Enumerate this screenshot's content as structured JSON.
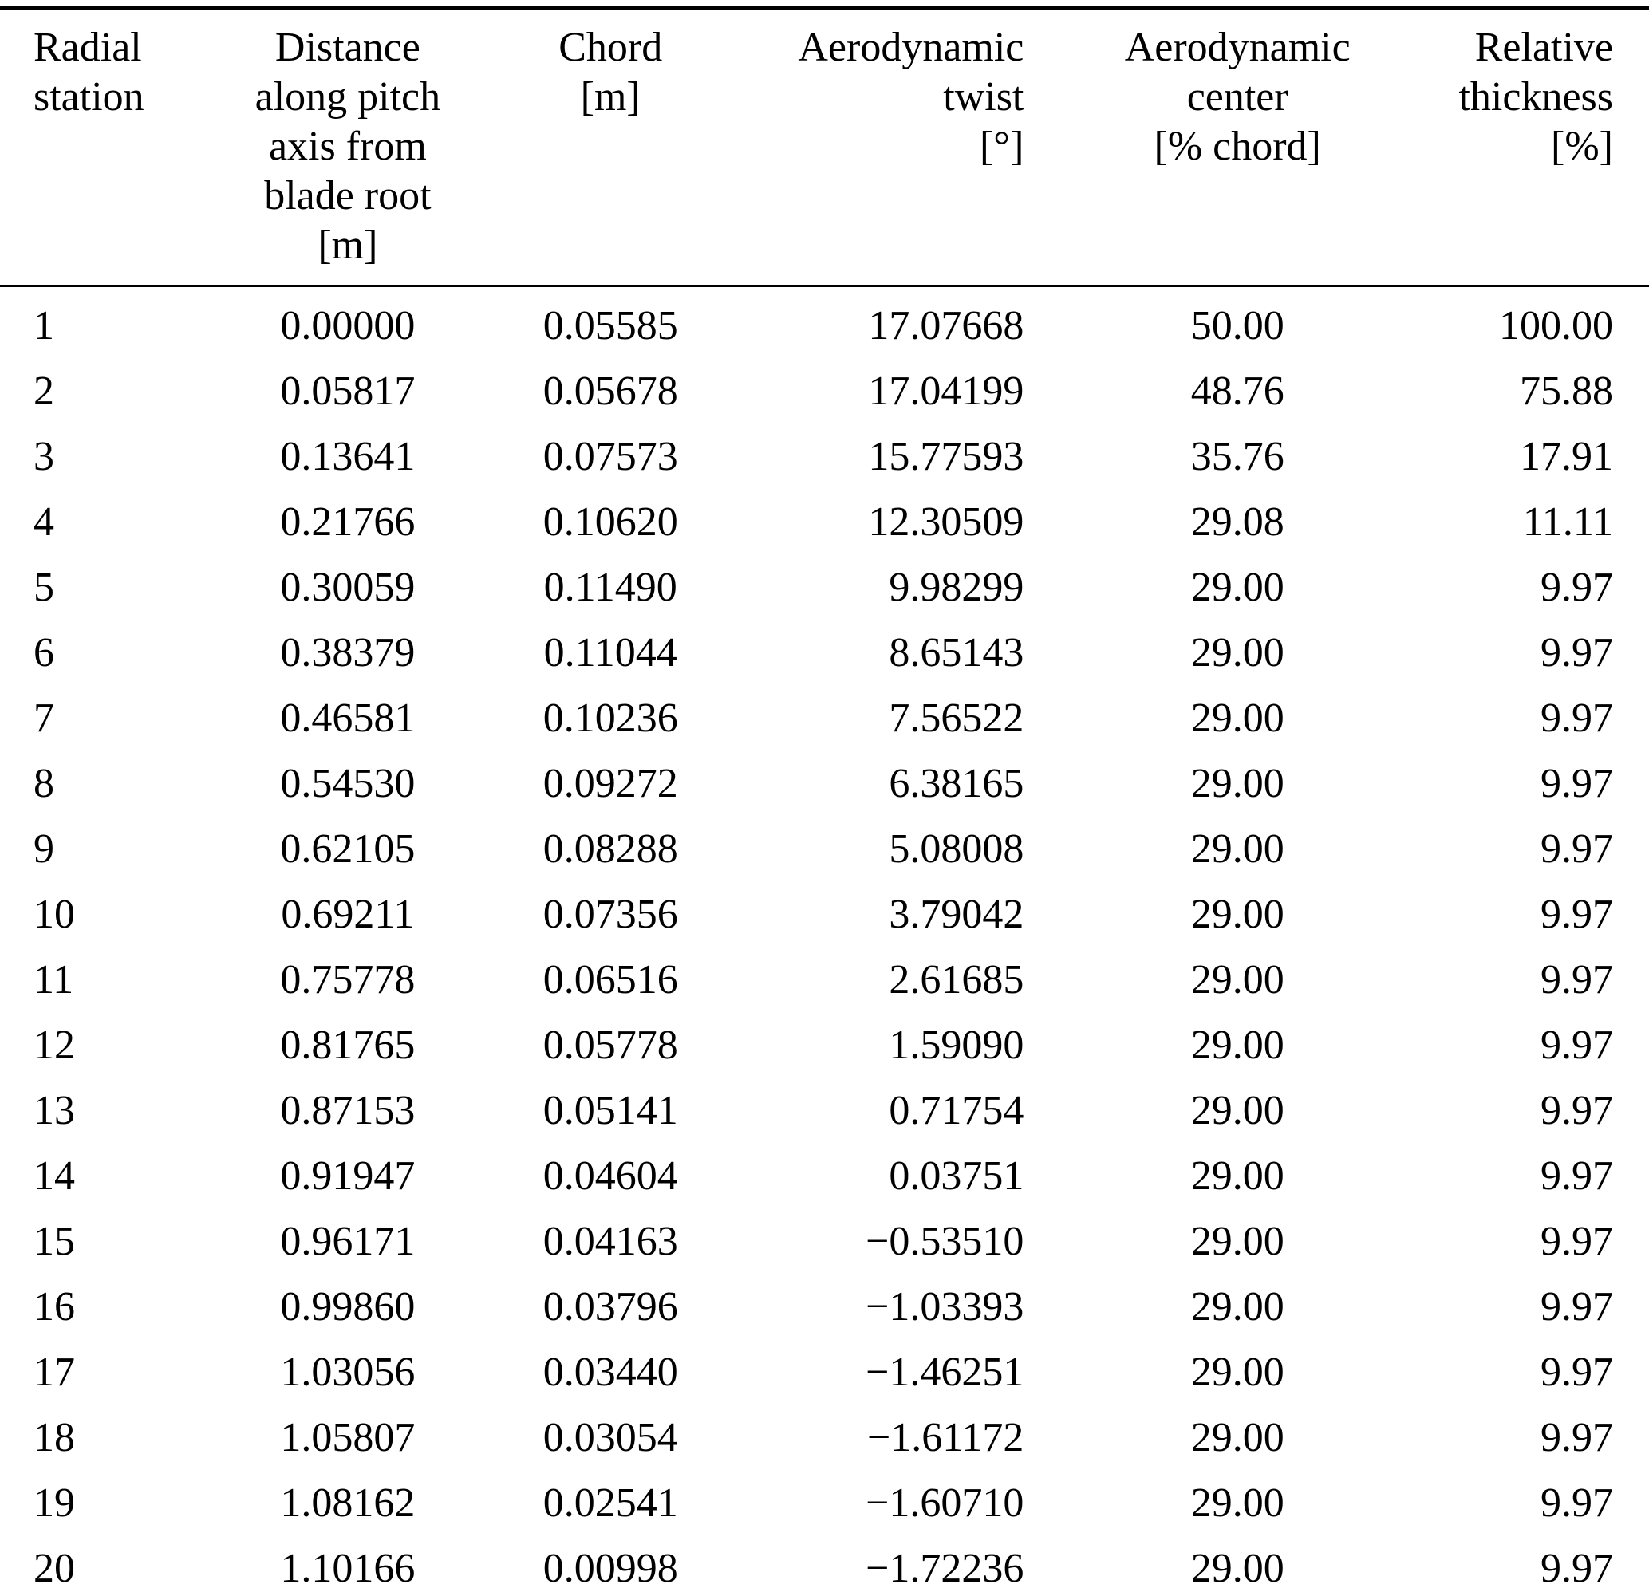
{
  "table": {
    "columns": [
      {
        "label": "Radial\nstation"
      },
      {
        "label": "Distance\nalong pitch\naxis from\nblade root\n[m]"
      },
      {
        "label": "Chord\n[m]"
      },
      {
        "label": "Aerodynamic\ntwist\n[°]"
      },
      {
        "label": "Aerodynamic\ncenter\n[% chord]"
      },
      {
        "label": "Relative\nthickness\n[%]"
      }
    ],
    "rows": [
      [
        "1",
        "0.00000",
        "0.05585",
        "17.07668",
        "50.00",
        "100.00"
      ],
      [
        "2",
        "0.05817",
        "0.05678",
        "17.04199",
        "48.76",
        "75.88"
      ],
      [
        "3",
        "0.13641",
        "0.07573",
        "15.77593",
        "35.76",
        "17.91"
      ],
      [
        "4",
        "0.21766",
        "0.10620",
        "12.30509",
        "29.08",
        "11.11"
      ],
      [
        "5",
        "0.30059",
        "0.11490",
        "9.98299",
        "29.00",
        "9.97"
      ],
      [
        "6",
        "0.38379",
        "0.11044",
        "8.65143",
        "29.00",
        "9.97"
      ],
      [
        "7",
        "0.46581",
        "0.10236",
        "7.56522",
        "29.00",
        "9.97"
      ],
      [
        "8",
        "0.54530",
        "0.09272",
        "6.38165",
        "29.00",
        "9.97"
      ],
      [
        "9",
        "0.62105",
        "0.08288",
        "5.08008",
        "29.00",
        "9.97"
      ],
      [
        "10",
        "0.69211",
        "0.07356",
        "3.79042",
        "29.00",
        "9.97"
      ],
      [
        "11",
        "0.75778",
        "0.06516",
        "2.61685",
        "29.00",
        "9.97"
      ],
      [
        "12",
        "0.81765",
        "0.05778",
        "1.59090",
        "29.00",
        "9.97"
      ],
      [
        "13",
        "0.87153",
        "0.05141",
        "0.71754",
        "29.00",
        "9.97"
      ],
      [
        "14",
        "0.91947",
        "0.04604",
        "0.03751",
        "29.00",
        "9.97"
      ],
      [
        "15",
        "0.96171",
        "0.04163",
        "−0.53510",
        "29.00",
        "9.97"
      ],
      [
        "16",
        "0.99860",
        "0.03796",
        "−1.03393",
        "29.00",
        "9.97"
      ],
      [
        "17",
        "1.03056",
        "0.03440",
        "−1.46251",
        "29.00",
        "9.97"
      ],
      [
        "18",
        "1.05807",
        "0.03054",
        "−1.61172",
        "29.00",
        "9.97"
      ],
      [
        "19",
        "1.08162",
        "0.02541",
        "−1.60710",
        "29.00",
        "9.97"
      ],
      [
        "20",
        "1.10166",
        "0.00998",
        "−1.72236",
        "29.00",
        "9.97"
      ]
    ]
  }
}
